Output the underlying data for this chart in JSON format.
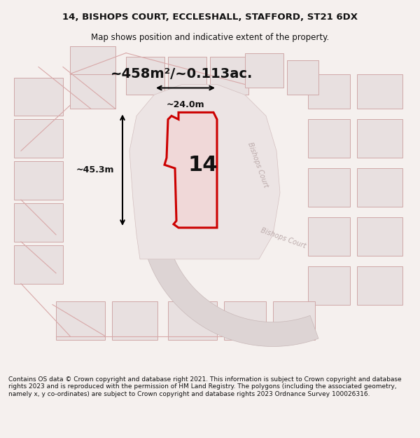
{
  "title_line1": "14, BISHOPS COURT, ECCLESHALL, STAFFORD, ST21 6DX",
  "title_line2": "Map shows position and indicative extent of the property.",
  "area_label": "~458m²/~0.113ac.",
  "dim_height": "~45.3m",
  "dim_width": "~24.0m",
  "plot_number": "14",
  "road_label1": "Bishops Court",
  "road_label2": "Bishops Court",
  "footer_text": "Contains OS data © Crown copyright and database right 2021. This information is subject to Crown copyright and database rights 2023 and is reproduced with the permission of HM Land Registry. The polygons (including the associated geometry, namely x, y co-ordinates) are subject to Crown copyright and database rights 2023 Ordnance Survey 100026316.",
  "bg_color": "#f5f0f0",
  "map_bg": "#f5f0ee",
  "plot_fill": "#f0e8e8",
  "road_fill": "#e8dede",
  "highlight_color": "#cc0000",
  "dim_color": "#111111",
  "text_color": "#111111",
  "road_text_color": "#aaaaaa",
  "footer_bg": "#ffffff"
}
